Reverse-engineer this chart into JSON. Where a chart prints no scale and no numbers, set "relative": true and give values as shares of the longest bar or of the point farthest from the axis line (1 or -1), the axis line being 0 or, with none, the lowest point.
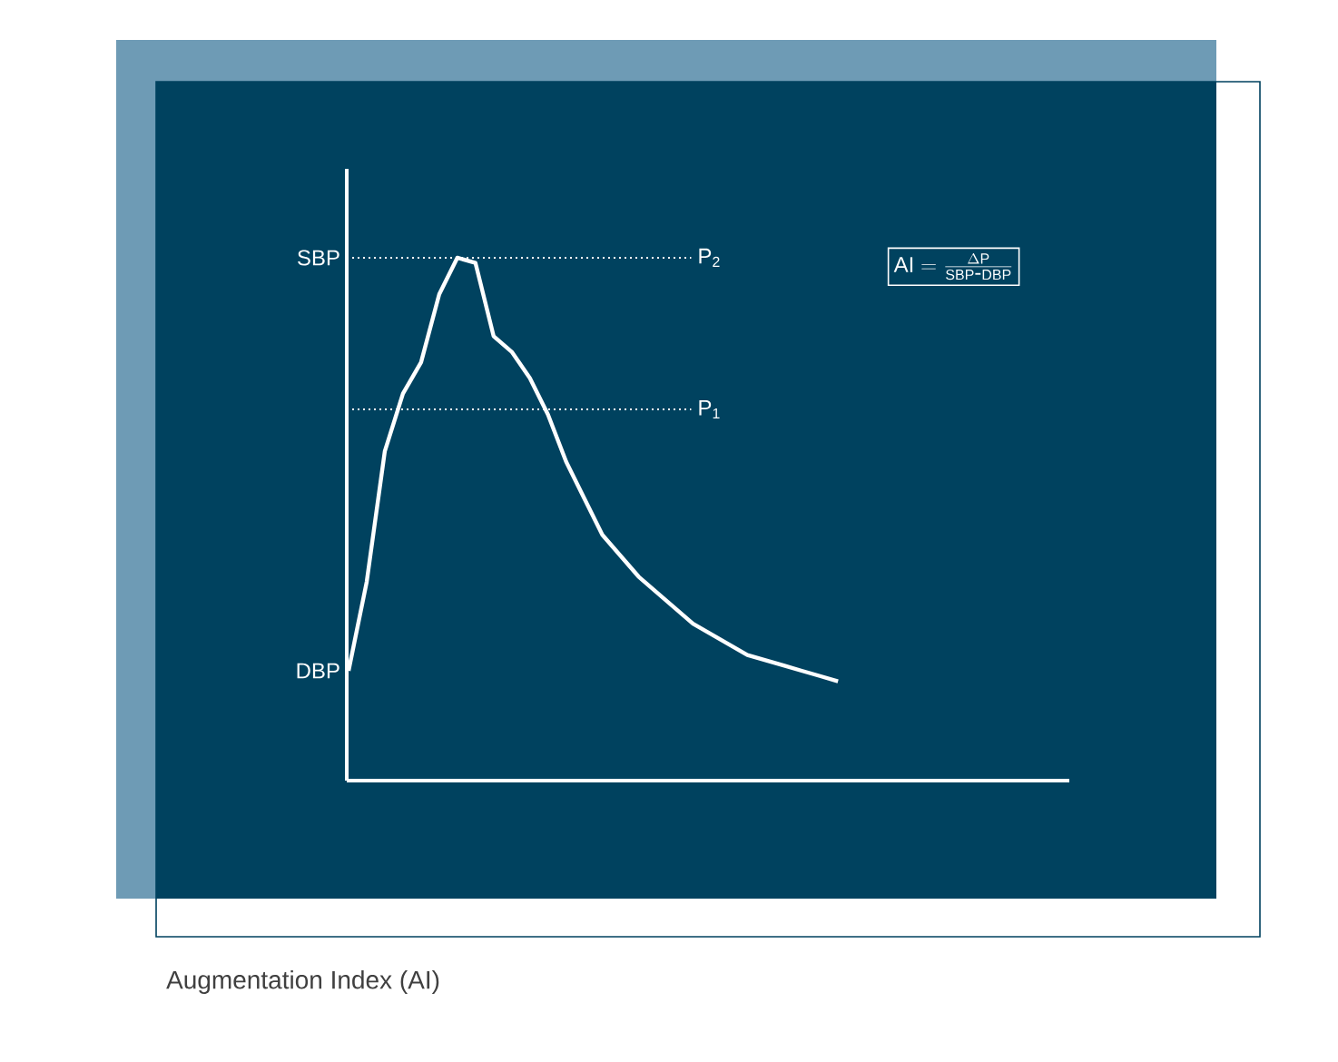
{
  "chart_data": {
    "type": "line",
    "relative": true,
    "line_style": "solid",
    "categories": [
      null,
      null,
      null,
      null,
      null,
      null,
      null,
      null,
      null,
      null,
      null,
      null,
      null,
      null,
      null,
      null,
      null,
      null,
      null,
      null,
      null,
      null,
      null,
      null,
      null,
      null,
      null,
      null
    ],
    "series": [
      {
        "color": "#ffffff",
        "values": [
          0.21,
          0.38,
          0.63,
          0.74,
          0.8,
          0.93,
          1.0,
          0.99,
          0.85,
          0.82,
          0.77,
          0.7,
          0.61,
          0.54,
          0.47,
          0.43,
          0.39,
          0.36,
          0.33,
          0.3,
          0.28,
          0.26,
          0.24,
          0.23,
          0.22,
          0.21,
          0.2,
          0.19
        ]
      }
    ],
    "ref_lines": [
      {
        "axis": "y",
        "value": 1.0,
        "label": "P$_{2}$",
        "color": "#ffffff",
        "line_style": "dotted"
      },
      {
        "axis": "y",
        "value": 0.71,
        "label": "P$_{1}$",
        "color": "#ffffff",
        "line_style": "dotted"
      }
    ],
    "annotations": [
      "SBP",
      "DBP",
      "\\mathrm{AI}=\\frac{\\Delta \\mathrm{P}}{\\mathrm{SBP\\mbox{-}DBP}}",
      "Augmentation Index (AI)"
    ]
  }
}
